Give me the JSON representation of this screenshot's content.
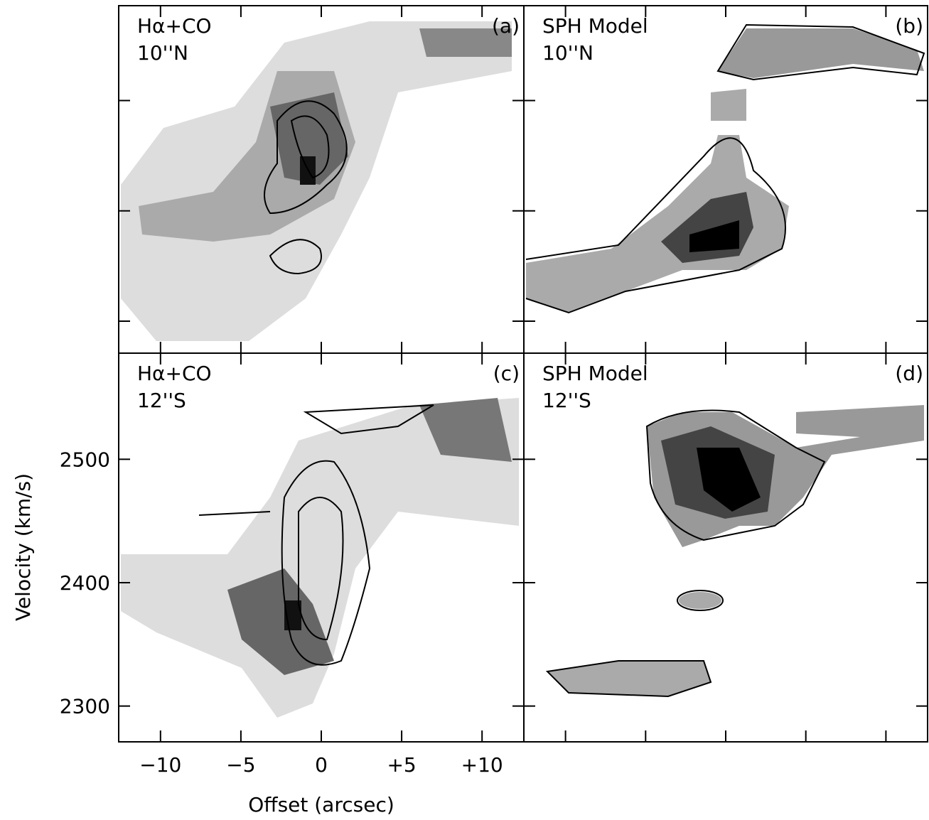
{
  "chart_data": {
    "type": "heatmap",
    "xlabel": "Offset (arcsec)",
    "ylabel": "Velocity (km/s)",
    "xlim": [
      -12.6,
      12.6
    ],
    "ylim": [
      2271,
      2586
    ],
    "xticks": [
      {
        "value": -10,
        "label": "−10"
      },
      {
        "value": -5,
        "label": "−5"
      },
      0,
      {
        "value": 5,
        "label": "+5"
      },
      {
        "value": 10,
        "label": "+10"
      }
    ],
    "yticks": [
      2300,
      2400,
      2500
    ],
    "panels": [
      {
        "label": "(a)",
        "title": "Hα+CO",
        "subtitle": "10''N"
      },
      {
        "label": "(b)",
        "title": "SPH Model",
        "subtitle": "10''N"
      },
      {
        "label": "(c)",
        "title": "Hα+CO",
        "subtitle": "12''S"
      },
      {
        "label": "(d)",
        "title": "SPH Model",
        "subtitle": "12''S"
      }
    ]
  }
}
